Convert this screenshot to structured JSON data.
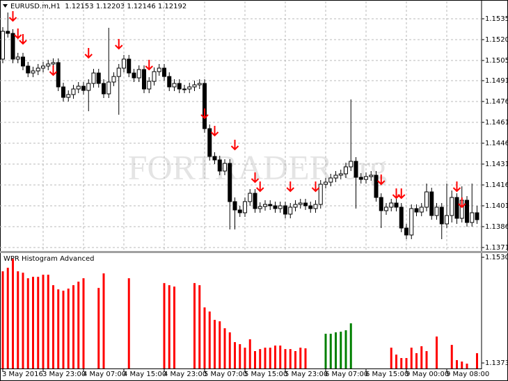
{
  "chart_data": [
    {
      "type": "candlestick",
      "title": "EURUSD.m,H1  1.12153 1.12203 1.12146 1.12192",
      "watermark": "FORTRADER.org",
      "categories": [
        "3 May 2016",
        null,
        null,
        null,
        null,
        null,
        null,
        null,
        "3 May 23:00",
        null,
        null,
        null,
        null,
        null,
        null,
        null,
        "4 May 07:00",
        null,
        null,
        null,
        null,
        null,
        null,
        null,
        "4 May 15:00",
        null,
        null,
        null,
        null,
        null,
        null,
        null,
        "4 May 23:00",
        null,
        null,
        null,
        null,
        null,
        null,
        null,
        "5 May 07:00",
        null,
        null,
        null,
        null,
        null,
        null,
        null,
        "5 May 15:00",
        null,
        null,
        null,
        null,
        null,
        null,
        null,
        "5 May 23:00",
        null,
        null,
        null,
        null,
        null,
        null,
        null,
        "6 May 07:00",
        null,
        null,
        null,
        null,
        null,
        null,
        null,
        "6 May 15:00",
        null,
        null,
        null,
        null,
        null,
        null,
        null,
        "9 May 00:00",
        null,
        null,
        null,
        null,
        null,
        null,
        null,
        "9 May 08:00",
        null,
        null,
        null,
        null,
        null,
        null
      ],
      "open": [
        1.15065,
        1.15265,
        1.1525,
        1.15065,
        1.1508,
        1.15015,
        1.14965,
        1.1498,
        1.15,
        1.15015,
        1.1503,
        1.1504,
        1.14865,
        1.1479,
        1.1481,
        1.1485,
        1.1487,
        1.1484,
        1.1489,
        1.14965,
        1.1489,
        1.14815,
        1.149,
        1.1494,
        1.15,
        1.15065,
        1.14965,
        1.1493,
        1.1499,
        1.1485,
        1.14905,
        1.14975,
        1.15,
        1.1494,
        1.14865,
        1.1489,
        1.1485,
        1.1485,
        1.14865,
        1.1488,
        1.1489,
        1.14565,
        1.14365,
        1.1434,
        1.1426,
        1.14315,
        1.1404,
        1.1398,
        1.1396,
        1.1404,
        1.141,
        1.1399,
        1.14005,
        1.1402,
        1.1401,
        1.1399,
        1.1401,
        1.1395,
        1.14,
        1.1402,
        1.1403,
        1.1401,
        1.1399,
        1.1402,
        1.14165,
        1.1418,
        1.1421,
        1.1423,
        1.1424,
        1.1429,
        1.1433,
        1.14215,
        1.142,
        1.1422,
        1.1423,
        1.1407,
        1.13975,
        1.14,
        1.1403,
        1.14,
        1.1385,
        1.138,
        1.1399,
        1.13965,
        1.14,
        1.1411,
        1.1394,
        1.14,
        1.1388,
        1.1394,
        1.1407,
        1.1392,
        1.1405,
        1.1389,
        1.1396
      ],
      "high": [
        1.15295,
        1.154,
        1.1528,
        1.1511,
        1.1511,
        1.15045,
        1.1501,
        1.1503,
        1.15045,
        1.1506,
        1.1507,
        1.1507,
        1.14895,
        1.1484,
        1.1488,
        1.149,
        1.149,
        1.1492,
        1.14995,
        1.14995,
        1.1492,
        1.1529,
        1.1497,
        1.1503,
        1.15095,
        1.15095,
        1.14995,
        1.1502,
        1.1502,
        1.14935,
        1.15005,
        1.1503,
        1.1503,
        1.1497,
        1.1492,
        1.1492,
        1.1488,
        1.14895,
        1.1491,
        1.1492,
        1.1492,
        1.14595,
        1.14395,
        1.1437,
        1.14345,
        1.14345,
        1.1407,
        1.1401,
        1.1407,
        1.1413,
        1.1413,
        1.14035,
        1.1405,
        1.1405,
        1.1404,
        1.1404,
        1.1404,
        1.1403,
        1.1405,
        1.1406,
        1.1406,
        1.1404,
        1.1405,
        1.14195,
        1.1421,
        1.1424,
        1.1426,
        1.1427,
        1.1432,
        1.14775,
        1.1436,
        1.14245,
        1.1425,
        1.1426,
        1.1426,
        1.141,
        1.1403,
        1.1406,
        1.1406,
        1.1403,
        1.1388,
        1.1402,
        1.1402,
        1.1403,
        1.1417,
        1.1414,
        1.1403,
        1.1403,
        1.1417,
        1.1412,
        1.141,
        1.1415,
        1.1408,
        1.1417,
        1.1401
      ],
      "low": [
        1.15035,
        1.1522,
        1.15035,
        1.15035,
        1.14985,
        1.14935,
        1.14935,
        1.1495,
        1.1497,
        1.14985,
        1.15,
        1.14835,
        1.1476,
        1.1476,
        1.1478,
        1.1482,
        1.1481,
        1.1469,
        1.1486,
        1.1486,
        1.14785,
        1.14785,
        1.1487,
        1.14665,
        1.1497,
        1.14935,
        1.149,
        1.149,
        1.1482,
        1.1482,
        1.14875,
        1.14945,
        1.1491,
        1.14835,
        1.14835,
        1.1482,
        1.1482,
        1.1482,
        1.14835,
        1.1485,
        1.14535,
        1.14335,
        1.1431,
        1.1423,
        1.1423,
        1.1384,
        1.1384,
        1.1393,
        1.1393,
        1.1401,
        1.1396,
        1.1396,
        1.13975,
        1.1398,
        1.1396,
        1.1396,
        1.1392,
        1.1392,
        1.1397,
        1.1399,
        1.1398,
        1.1396,
        1.1396,
        1.1399,
        1.14135,
        1.1415,
        1.1418,
        1.142,
        1.1421,
        1.1426,
        1.1399,
        1.1417,
        1.1417,
        1.1419,
        1.1404,
        1.1385,
        1.13945,
        1.1397,
        1.1397,
        1.1382,
        1.1377,
        1.1377,
        1.13935,
        1.13935,
        1.1397,
        1.1391,
        1.1391,
        1.1377,
        1.1385,
        1.1389,
        1.1388,
        1.1389,
        1.1386,
        1.1386,
        1.1388
      ],
      "close": [
        1.15265,
        1.1525,
        1.15065,
        1.1508,
        1.15015,
        1.14965,
        1.1498,
        1.15,
        1.15015,
        1.1503,
        1.1504,
        1.14865,
        1.1479,
        1.1481,
        1.1485,
        1.1487,
        1.1484,
        1.1489,
        1.14965,
        1.1489,
        1.14815,
        1.149,
        1.1494,
        1.15,
        1.15065,
        1.14965,
        1.1493,
        1.1499,
        1.1485,
        1.14905,
        1.14975,
        1.15,
        1.1494,
        1.14865,
        1.1489,
        1.1485,
        1.1485,
        1.14865,
        1.1488,
        1.1489,
        1.14565,
        1.14365,
        1.1434,
        1.1426,
        1.14315,
        1.1404,
        1.1398,
        1.1396,
        1.1404,
        1.141,
        1.1399,
        1.14005,
        1.1402,
        1.1401,
        1.1399,
        1.1401,
        1.1395,
        1.14,
        1.1402,
        1.1403,
        1.1401,
        1.1399,
        1.1402,
        1.14165,
        1.1418,
        1.1421,
        1.1423,
        1.1424,
        1.1429,
        1.1433,
        1.14215,
        1.142,
        1.1422,
        1.1423,
        1.1407,
        1.13975,
        1.14,
        1.1403,
        1.14,
        1.1385,
        1.138,
        1.1399,
        1.13965,
        1.14,
        1.1411,
        1.1394,
        1.14,
        1.1388,
        1.1394,
        1.1407,
        1.1392,
        1.1405,
        1.1389,
        1.1396,
        1.1391
      ],
      "up_color": "#ffffff",
      "down_color": "#000000",
      "arrows": {
        "color": "#ff0000",
        "values": [
          null,
          null,
          1.1534,
          1.15215,
          1.15175,
          null,
          null,
          null,
          null,
          null,
          1.1495,
          null,
          null,
          null,
          null,
          null,
          null,
          1.15075,
          null,
          null,
          null,
          null,
          null,
          1.1514,
          null,
          null,
          null,
          null,
          null,
          1.1499,
          null,
          null,
          null,
          null,
          null,
          null,
          null,
          null,
          null,
          null,
          1.1464,
          null,
          1.14515,
          null,
          null,
          null,
          1.14415,
          null,
          null,
          null,
          1.1418,
          1.14115,
          null,
          null,
          null,
          null,
          null,
          1.14115,
          null,
          null,
          null,
          null,
          1.14115,
          null,
          null,
          null,
          null,
          null,
          null,
          null,
          null,
          null,
          null,
          null,
          null,
          1.14165,
          null,
          null,
          1.14065,
          1.14065,
          null,
          null,
          null,
          null,
          null,
          null,
          null,
          null,
          null,
          null,
          1.14115,
          1.14,
          null,
          null,
          null
        ]
      },
      "ylim": [
        1.1368,
        1.1548
      ],
      "yticks": [
        1.15355,
        1.15205,
        1.15055,
        {
          "value": 1.1491,
          "label": "1.14910"
        },
        {
          "value": 1.1476,
          "label": "1.14760"
        },
        {
          "value": 1.1461,
          "label": "1.14610"
        },
        {
          "value": 1.1446,
          "label": "1.14460"
        },
        {
          "value": 1.1431,
          "label": "1.14310"
        },
        {
          "value": 1.1416,
          "label": "1.14160"
        },
        {
          "value": 1.1401,
          "label": "1.14010"
        },
        {
          "value": 1.1386,
          "label": "1.13860"
        },
        {
          "value": 1.1371,
          "label": "1.13710"
        }
      ],
      "grid": true
    },
    {
      "type": "bar",
      "title": "WPR Histogram Advanced",
      "series": [
        {
          "color": "#ff0000",
          "values": [
            1.15099,
            1.15151,
            1.15284,
            1.15099,
            1.15078,
            1.14996,
            1.15017,
            1.15017,
            1.15048,
            1.15048,
            1.14893,
            1.14831,
            1.14811,
            1.14842,
            1.14893,
            1.14945,
            1.14996,
            null,
            null,
            1.14852,
            1.15068,
            null,
            null,
            null,
            null,
            1.14996,
            null,
            null,
            null,
            null,
            null,
            null,
            1.14924,
            1.14893,
            1.14872,
            null,
            null,
            null,
            1.14924,
            1.14893,
            1.14563,
            1.14502,
            1.14378,
            1.14357,
            1.14254,
            1.14193,
            1.14048,
            1.14018,
            1.13966,
            1.1409,
            1.13915,
            1.13945,
            1.13966,
            1.13966,
            1.13997,
            1.13997,
            1.13945,
            1.13945,
            1.13915,
            1.13966,
            1.13956,
            null,
            null,
            null,
            null,
            null,
            null,
            null,
            null,
            null,
            null,
            null,
            null,
            null,
            null,
            null,
            null,
            1.13966,
            1.13863,
            1.13812,
            1.13812,
            1.13966,
            1.13884,
            1.13987,
            1.13915,
            null,
            1.14131,
            null,
            null,
            1.14007,
            1.13781,
            1.1376,
            1.13729,
            null,
            1.13884
          ]
        },
        {
          "color": "#008000",
          "values": [
            null,
            null,
            null,
            null,
            null,
            null,
            null,
            null,
            null,
            null,
            null,
            null,
            null,
            null,
            null,
            null,
            null,
            null,
            null,
            null,
            null,
            null,
            null,
            null,
            null,
            null,
            null,
            null,
            null,
            null,
            null,
            null,
            null,
            null,
            null,
            null,
            null,
            null,
            null,
            null,
            null,
            null,
            null,
            null,
            null,
            null,
            null,
            null,
            null,
            null,
            null,
            null,
            null,
            null,
            null,
            null,
            null,
            null,
            null,
            null,
            null,
            null,
            null,
            null,
            1.14172,
            1.14172,
            1.14193,
            1.14203,
            1.14224,
            1.14327,
            null,
            null,
            null,
            null,
            null,
            null,
            null,
            null,
            null,
            null,
            null,
            null,
            null,
            null,
            null,
            null,
            null,
            null,
            null,
            null,
            null,
            null,
            null,
            null,
            null
          ]
        }
      ],
      "ylim": [
        1.13657,
        1.15359
      ],
      "yticks": [
        1.15307,
        1.13739
      ]
    }
  ]
}
